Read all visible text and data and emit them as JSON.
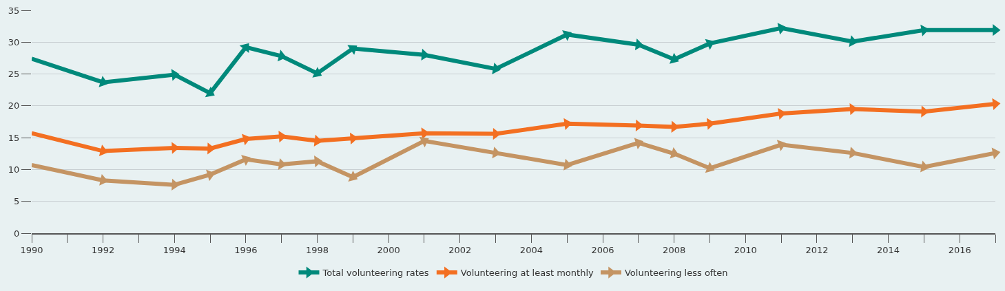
{
  "chart_data": {
    "type": "line",
    "x": [
      1990,
      1992,
      1994,
      1995,
      1996,
      1997,
      1998,
      1999,
      2001,
      2003,
      2005,
      2007,
      2008,
      2009,
      2011,
      2013,
      2015,
      2017
    ],
    "series": [
      {
        "name": "Total volunteering rates",
        "color": "#00897b",
        "values": [
          27.4,
          23.7,
          24.9,
          22.0,
          29.2,
          27.8,
          25.1,
          29.0,
          28.0,
          25.8,
          31.2,
          29.6,
          27.3,
          29.8,
          32.2,
          30.1,
          31.9,
          31.9
        ]
      },
      {
        "name": "Volunteering at least monthly",
        "color": "#f36f21",
        "values": [
          15.7,
          12.9,
          13.4,
          13.3,
          14.8,
          15.2,
          14.5,
          14.9,
          15.7,
          15.6,
          17.2,
          16.9,
          16.7,
          17.2,
          18.8,
          19.5,
          19.1,
          20.3
        ]
      },
      {
        "name": "Volunteering less often",
        "color": "#c49463",
        "values": [
          10.7,
          8.3,
          7.6,
          9.2,
          11.6,
          10.8,
          11.3,
          8.8,
          14.5,
          12.6,
          10.7,
          14.2,
          12.5,
          10.2,
          13.9,
          12.6,
          10.4,
          12.6
        ]
      }
    ],
    "xlim": [
      1990,
      2017
    ],
    "xticks": [
      1990,
      {
        "value": 1991,
        "label": null
      },
      1992,
      {
        "value": 1993,
        "label": null
      },
      1994,
      {
        "value": 1995,
        "label": null
      },
      1996,
      {
        "value": 1997,
        "label": null
      },
      1998,
      {
        "value": 1999,
        "label": null
      },
      2000,
      {
        "value": 2001,
        "label": null
      },
      2002,
      {
        "value": 2003,
        "label": null
      },
      2004,
      {
        "value": 2005,
        "label": null
      },
      2006,
      {
        "value": 2007,
        "label": null
      },
      2008,
      {
        "value": 2009,
        "label": null
      },
      2010,
      {
        "value": 2011,
        "label": null
      },
      2012,
      {
        "value": 2013,
        "label": null
      },
      2014,
      {
        "value": 2015,
        "label": null
      },
      2016,
      {
        "value": 2017,
        "label": null
      }
    ],
    "ylim": [
      0,
      35
    ],
    "yticks": [
      0,
      5,
      10,
      15,
      20,
      25,
      30,
      35
    ],
    "grid": "y",
    "legend": "bottom",
    "marker": "triangle",
    "line_style": "solid"
  }
}
